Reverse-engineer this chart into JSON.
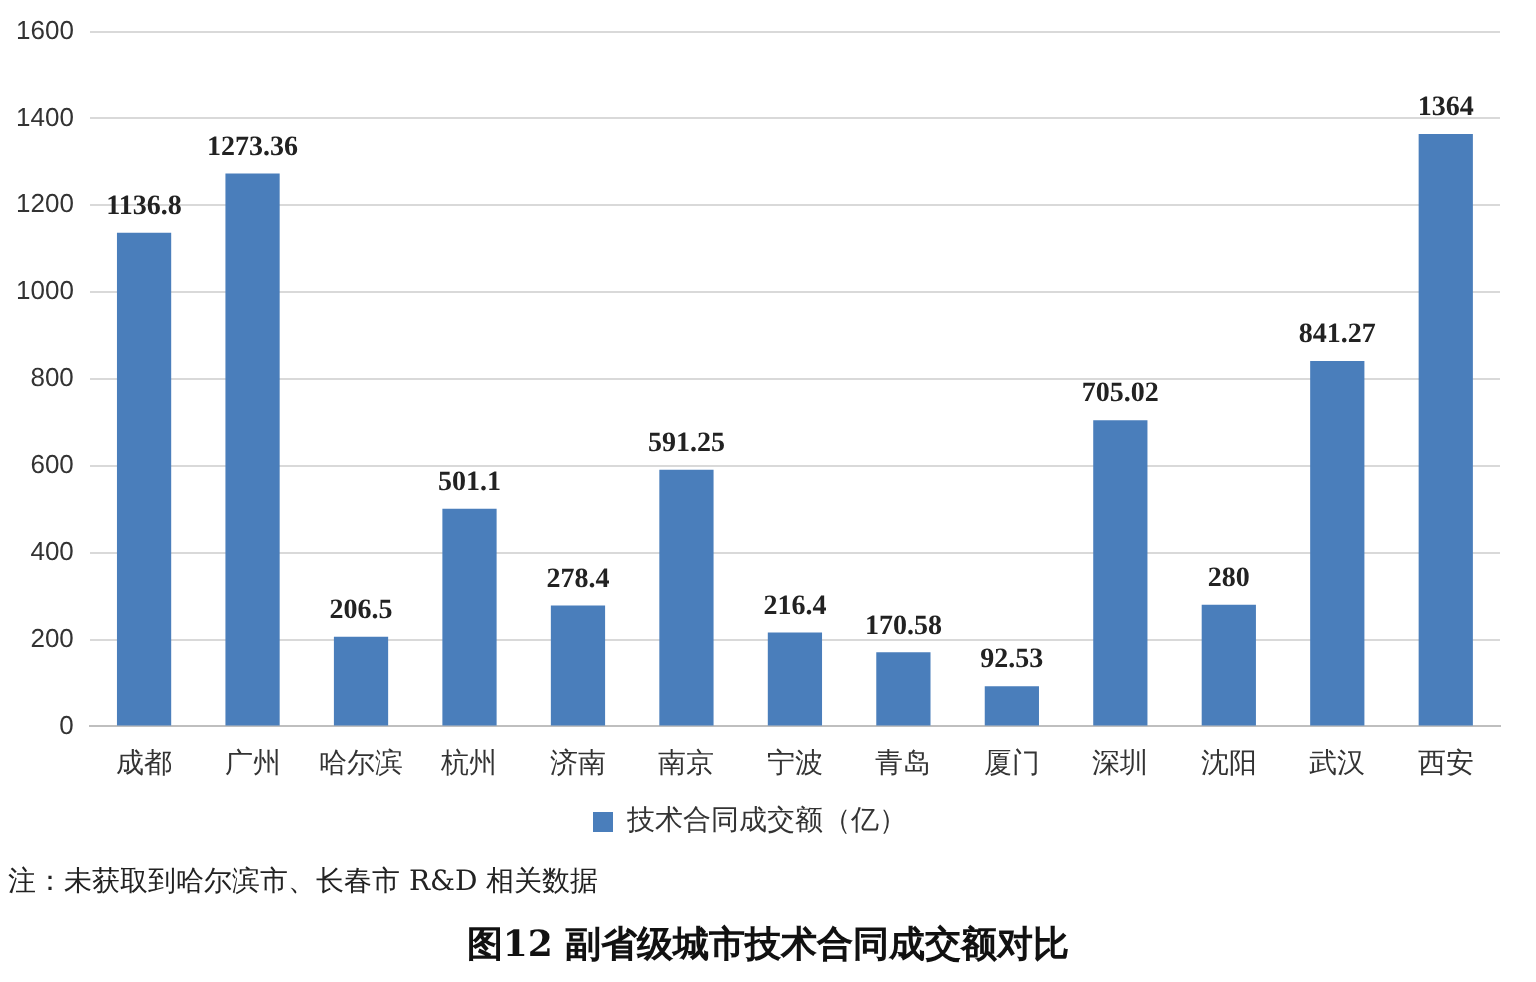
{
  "chart_data": {
    "type": "bar",
    "title": "图12  副省级城市技术合同成交额对比",
    "categories": [
      "成都",
      "广州",
      "哈尔滨",
      "杭州",
      "济南",
      "南京",
      "宁波",
      "青岛",
      "厦门",
      "深圳",
      "沈阳",
      "武汉",
      "西安"
    ],
    "series": [
      {
        "name": "技术合同成交额（亿）",
        "color": "#4a7ebb",
        "values": [
          1136.8,
          1273.36,
          206.5,
          501.1,
          278.4,
          591.25,
          216.4,
          170.58,
          92.53,
          705.02,
          280,
          841.27,
          1364
        ]
      }
    ],
    "ylim": [
      0,
      1600
    ],
    "yticks": [
      0,
      200,
      400,
      600,
      800,
      1000,
      1200,
      1400,
      1600
    ],
    "grid": "y",
    "legend": "bottom",
    "data_labels": true,
    "annotations": [
      "注：未获取到哈尔滨市、长春市 R&D 相关数据"
    ]
  }
}
